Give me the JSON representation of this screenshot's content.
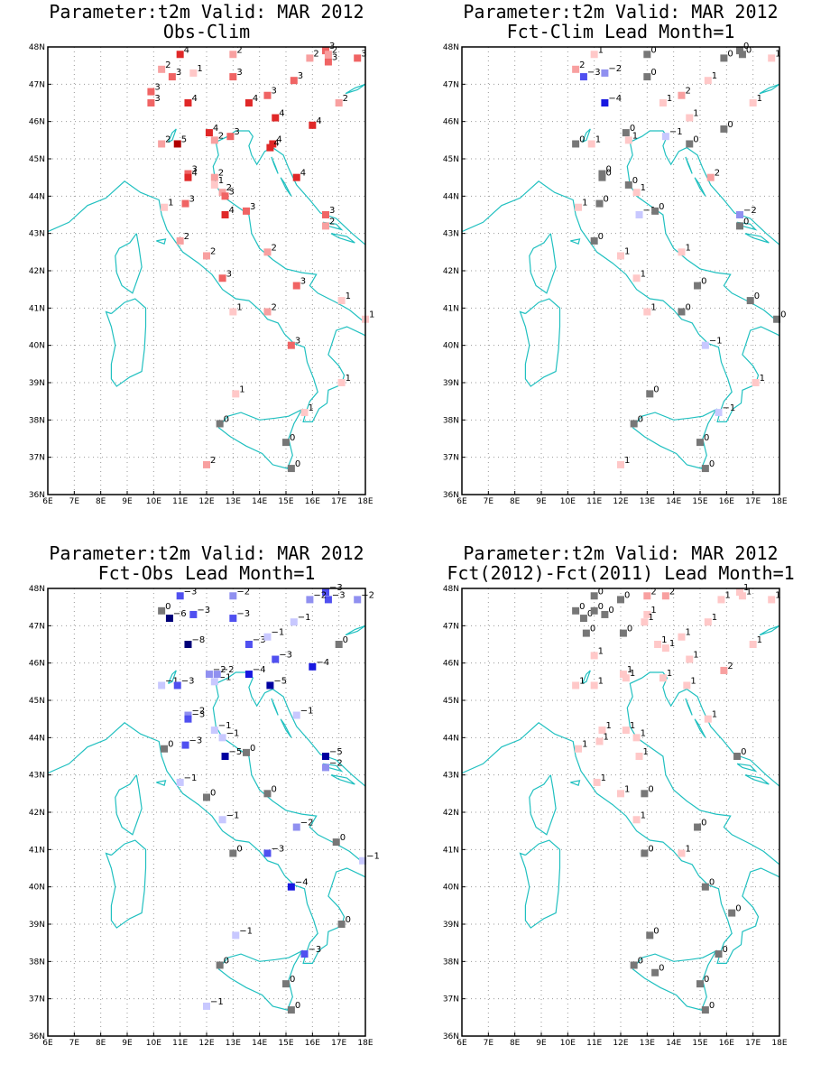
{
  "colors": {
    "coast": "#20c0c0",
    "grid": "#9a9a9a",
    "zero": "#777777",
    "pos": [
      "#ffc8c8",
      "#f8a0a0",
      "#f06464",
      "#e02828",
      "#b00000",
      "#800000"
    ],
    "neg": [
      "#c8c8ff",
      "#9090f0",
      "#5050f0",
      "#1818e0",
      "#0000a0",
      "#000078"
    ]
  },
  "chart_data": [
    {
      "type": "scatter",
      "title": "Parameter:t2m Valid: MAR 2012",
      "subtitle": "Obs-Clim",
      "xlim": [
        6,
        18
      ],
      "ylim": [
        36,
        48
      ],
      "xticks": [
        "6E",
        "7E",
        "8E",
        "9E",
        "10E",
        "11E",
        "12E",
        "13E",
        "14E",
        "15E",
        "16E",
        "17E",
        "18E"
      ],
      "yticks": [
        "36N",
        "37N",
        "38N",
        "39N",
        "40N",
        "41N",
        "42N",
        "43N",
        "44N",
        "45N",
        "46N",
        "47N",
        "48N"
      ],
      "grid": true,
      "points": [
        [
          11.0,
          47.8,
          4
        ],
        [
          13.0,
          47.8,
          2
        ],
        [
          10.3,
          47.4,
          2
        ],
        [
          11.5,
          47.3,
          1
        ],
        [
          10.7,
          47.2,
          3
        ],
        [
          9.9,
          46.8,
          3
        ],
        [
          9.9,
          46.5,
          3
        ],
        [
          13.0,
          47.2,
          3
        ],
        [
          16.5,
          47.9,
          3
        ],
        [
          16.6,
          47.8,
          2
        ],
        [
          16.6,
          47.6,
          3
        ],
        [
          17.7,
          47.7,
          3
        ],
        [
          15.9,
          47.7,
          2
        ],
        [
          15.3,
          47.1,
          3
        ],
        [
          11.3,
          46.5,
          4
        ],
        [
          13.6,
          46.5,
          4
        ],
        [
          14.3,
          46.7,
          3
        ],
        [
          14.6,
          46.1,
          4
        ],
        [
          17.0,
          46.5,
          2
        ],
        [
          16.0,
          45.9,
          4
        ],
        [
          12.1,
          45.7,
          4
        ],
        [
          12.3,
          45.5,
          2
        ],
        [
          12.9,
          45.6,
          3
        ],
        [
          10.3,
          45.4,
          2
        ],
        [
          10.9,
          45.4,
          5
        ],
        [
          14.5,
          45.4,
          4
        ],
        [
          14.4,
          45.3,
          4
        ],
        [
          11.3,
          44.6,
          3
        ],
        [
          11.3,
          44.5,
          4
        ],
        [
          12.3,
          44.5,
          2
        ],
        [
          12.3,
          44.3,
          1
        ],
        [
          12.6,
          44.1,
          2
        ],
        [
          12.7,
          44.0,
          3
        ],
        [
          15.4,
          44.5,
          4
        ],
        [
          10.4,
          43.7,
          1
        ],
        [
          11.2,
          43.8,
          3
        ],
        [
          12.7,
          43.5,
          4
        ],
        [
          13.5,
          43.6,
          3
        ],
        [
          16.5,
          43.5,
          3
        ],
        [
          16.5,
          43.2,
          2
        ],
        [
          11.0,
          42.8,
          2
        ],
        [
          12.0,
          42.4,
          2
        ],
        [
          14.3,
          42.5,
          2
        ],
        [
          12.6,
          41.8,
          3
        ],
        [
          15.4,
          41.6,
          3
        ],
        [
          13.0,
          40.9,
          1
        ],
        [
          14.3,
          40.9,
          2
        ],
        [
          17.1,
          41.2,
          1
        ],
        [
          18.0,
          40.7,
          1
        ],
        [
          15.2,
          40.0,
          3
        ],
        [
          13.1,
          38.7,
          1
        ],
        [
          15.7,
          38.2,
          1
        ],
        [
          17.1,
          39.0,
          1
        ],
        [
          12.5,
          37.9,
          0
        ],
        [
          15.0,
          37.4,
          0
        ],
        [
          15.2,
          36.7,
          0
        ],
        [
          12.0,
          36.8,
          2
        ]
      ]
    },
    {
      "type": "scatter",
      "title": "Parameter:t2m Valid: MAR 2012",
      "subtitle": "Fct-Clim Lead Month=1",
      "xlim": [
        6,
        18
      ],
      "ylim": [
        36,
        48
      ],
      "xticks": [
        "6E",
        "7E",
        "8E",
        "9E",
        "10E",
        "11E",
        "12E",
        "13E",
        "14E",
        "15E",
        "16E",
        "17E",
        "18E"
      ],
      "yticks": [
        "36N",
        "37N",
        "38N",
        "39N",
        "40N",
        "41N",
        "42N",
        "43N",
        "44N",
        "45N",
        "46N",
        "47N",
        "48N"
      ],
      "grid": true,
      "points": [
        [
          11.0,
          47.8,
          1
        ],
        [
          13.0,
          47.8,
          0
        ],
        [
          10.3,
          47.4,
          2
        ],
        [
          11.4,
          47.3,
          -2
        ],
        [
          10.6,
          47.2,
          -3
        ],
        [
          13.0,
          47.2,
          0
        ],
        [
          16.5,
          47.9,
          0
        ],
        [
          16.6,
          47.8,
          0
        ],
        [
          17.7,
          47.7,
          1
        ],
        [
          15.9,
          47.7,
          0
        ],
        [
          15.3,
          47.1,
          1
        ],
        [
          11.4,
          46.5,
          -4
        ],
        [
          13.6,
          46.5,
          1
        ],
        [
          14.3,
          46.7,
          2
        ],
        [
          14.6,
          46.1,
          1
        ],
        [
          17.0,
          46.5,
          1
        ],
        [
          15.9,
          45.8,
          0
        ],
        [
          10.3,
          45.4,
          0
        ],
        [
          10.9,
          45.4,
          1
        ],
        [
          12.2,
          45.7,
          0
        ],
        [
          12.3,
          45.5,
          1
        ],
        [
          13.7,
          45.6,
          -1
        ],
        [
          14.6,
          45.4,
          0
        ],
        [
          11.3,
          44.6,
          0
        ],
        [
          11.3,
          44.5,
          0
        ],
        [
          12.3,
          44.3,
          0
        ],
        [
          12.6,
          44.1,
          1
        ],
        [
          15.4,
          44.5,
          2
        ],
        [
          10.4,
          43.7,
          1
        ],
        [
          11.2,
          43.8,
          0
        ],
        [
          12.7,
          43.5,
          -1
        ],
        [
          13.3,
          43.6,
          0
        ],
        [
          16.5,
          43.5,
          -2
        ],
        [
          16.5,
          43.2,
          0
        ],
        [
          11.0,
          42.8,
          0
        ],
        [
          12.0,
          42.4,
          1
        ],
        [
          14.3,
          42.5,
          1
        ],
        [
          12.6,
          41.8,
          1
        ],
        [
          14.9,
          41.6,
          0
        ],
        [
          13.0,
          40.9,
          1
        ],
        [
          14.3,
          40.9,
          0
        ],
        [
          16.9,
          41.2,
          0
        ],
        [
          17.9,
          40.7,
          0
        ],
        [
          15.2,
          40.0,
          -1
        ],
        [
          13.1,
          38.7,
          0
        ],
        [
          15.7,
          38.2,
          -1
        ],
        [
          17.1,
          39.0,
          1
        ],
        [
          12.5,
          37.9,
          0
        ],
        [
          15.0,
          37.4,
          0
        ],
        [
          15.2,
          36.7,
          0
        ],
        [
          12.0,
          36.8,
          1
        ]
      ]
    },
    {
      "type": "scatter",
      "title": "Parameter:t2m Valid: MAR 2012",
      "subtitle": "Fct-Obs Lead Month=1",
      "xlim": [
        6,
        18
      ],
      "ylim": [
        36,
        48
      ],
      "xticks": [
        "6E",
        "7E",
        "8E",
        "9E",
        "10E",
        "11E",
        "12E",
        "13E",
        "14E",
        "15E",
        "16E",
        "17E",
        "18E"
      ],
      "yticks": [
        "36N",
        "37N",
        "38N",
        "39N",
        "40N",
        "41N",
        "42N",
        "43N",
        "44N",
        "45N",
        "46N",
        "47N",
        "48N"
      ],
      "grid": true,
      "points": [
        [
          11.0,
          47.8,
          -3
        ],
        [
          13.0,
          47.8,
          -2
        ],
        [
          10.3,
          47.4,
          0
        ],
        [
          10.6,
          47.2,
          -6
        ],
        [
          11.5,
          47.3,
          -3
        ],
        [
          13.0,
          47.2,
          -3
        ],
        [
          16.5,
          47.9,
          -3
        ],
        [
          16.6,
          47.7,
          -3
        ],
        [
          17.7,
          47.7,
          -2
        ],
        [
          15.9,
          47.7,
          -2
        ],
        [
          15.3,
          47.1,
          -1
        ],
        [
          11.3,
          46.5,
          -8
        ],
        [
          13.6,
          46.5,
          -3
        ],
        [
          14.3,
          46.7,
          -1
        ],
        [
          14.6,
          46.1,
          -3
        ],
        [
          17.0,
          46.5,
          0
        ],
        [
          16.0,
          45.9,
          -4
        ],
        [
          10.3,
          45.4,
          -1
        ],
        [
          10.9,
          45.4,
          -3
        ],
        [
          12.1,
          45.7,
          -2
        ],
        [
          12.3,
          45.5,
          -1
        ],
        [
          12.4,
          45.7,
          -2
        ],
        [
          13.6,
          45.7,
          -4
        ],
        [
          14.4,
          45.4,
          -5
        ],
        [
          11.3,
          44.6,
          -2
        ],
        [
          11.3,
          44.5,
          -3
        ],
        [
          12.3,
          44.2,
          -1
        ],
        [
          12.6,
          44.0,
          -1
        ],
        [
          15.4,
          44.6,
          -1
        ],
        [
          10.4,
          43.7,
          0
        ],
        [
          11.2,
          43.8,
          -3
        ],
        [
          12.7,
          43.5,
          -5
        ],
        [
          13.5,
          43.6,
          0
        ],
        [
          16.5,
          43.5,
          -5
        ],
        [
          16.5,
          43.2,
          -2
        ],
        [
          11.0,
          42.8,
          -1
        ],
        [
          12.0,
          42.4,
          0
        ],
        [
          14.3,
          42.5,
          0
        ],
        [
          12.6,
          41.8,
          -1
        ],
        [
          15.4,
          41.6,
          -2
        ],
        [
          13.0,
          40.9,
          0
        ],
        [
          14.3,
          40.9,
          -3
        ],
        [
          16.9,
          41.2,
          0
        ],
        [
          17.9,
          40.7,
          -1
        ],
        [
          15.2,
          40.0,
          -4
        ],
        [
          13.1,
          38.7,
          -1
        ],
        [
          15.7,
          38.2,
          -3
        ],
        [
          17.1,
          39.0,
          0
        ],
        [
          12.5,
          37.9,
          0
        ],
        [
          15.0,
          37.4,
          0
        ],
        [
          15.2,
          36.7,
          0
        ],
        [
          12.0,
          36.8,
          -1
        ]
      ]
    },
    {
      "type": "scatter",
      "title": "Parameter:t2m Valid: MAR 2012",
      "subtitle": "Fct(2012)-Fct(2011) Lead Month=1",
      "xlim": [
        6,
        18
      ],
      "ylim": [
        36,
        48
      ],
      "xticks": [
        "6E",
        "7E",
        "8E",
        "9E",
        "10E",
        "11E",
        "12E",
        "13E",
        "14E",
        "15E",
        "16E",
        "17E",
        "18E"
      ],
      "yticks": [
        "36N",
        "37N",
        "38N",
        "39N",
        "40N",
        "41N",
        "42N",
        "43N",
        "44N",
        "45N",
        "46N",
        "47N",
        "48N"
      ],
      "grid": true,
      "points": [
        [
          11.0,
          47.8,
          0
        ],
        [
          12.0,
          47.7,
          0
        ],
        [
          13.0,
          47.8,
          2
        ],
        [
          13.7,
          47.8,
          2
        ],
        [
          10.3,
          47.4,
          0
        ],
        [
          10.6,
          47.2,
          0
        ],
        [
          11.4,
          47.3,
          0
        ],
        [
          11.0,
          47.4,
          0
        ],
        [
          13.0,
          47.3,
          1
        ],
        [
          12.9,
          47.1,
          1
        ],
        [
          10.7,
          46.8,
          0
        ],
        [
          12.1,
          46.8,
          0
        ],
        [
          15.8,
          47.7,
          1
        ],
        [
          16.5,
          47.9,
          1
        ],
        [
          16.6,
          47.8,
          1
        ],
        [
          17.7,
          47.7,
          1
        ],
        [
          15.3,
          47.1,
          1
        ],
        [
          13.4,
          46.5,
          1
        ],
        [
          13.7,
          46.4,
          1
        ],
        [
          14.3,
          46.7,
          1
        ],
        [
          11.0,
          46.2,
          1
        ],
        [
          14.6,
          46.1,
          1
        ],
        [
          17.0,
          46.5,
          1
        ],
        [
          15.9,
          45.8,
          2
        ],
        [
          10.3,
          45.4,
          1
        ],
        [
          11.0,
          45.4,
          1
        ],
        [
          12.1,
          45.7,
          1
        ],
        [
          12.2,
          45.6,
          1
        ],
        [
          13.6,
          45.6,
          1
        ],
        [
          14.5,
          45.4,
          1
        ],
        [
          11.3,
          44.2,
          1
        ],
        [
          12.2,
          44.2,
          1
        ],
        [
          12.6,
          44.0,
          1
        ],
        [
          15.3,
          44.5,
          1
        ],
        [
          10.4,
          43.7,
          1
        ],
        [
          11.2,
          43.9,
          1
        ],
        [
          12.7,
          43.5,
          1
        ],
        [
          16.4,
          43.5,
          0
        ],
        [
          11.1,
          42.8,
          1
        ],
        [
          12.0,
          42.5,
          1
        ],
        [
          12.9,
          42.5,
          0
        ],
        [
          12.6,
          41.8,
          1
        ],
        [
          14.9,
          41.6,
          0
        ],
        [
          12.9,
          40.9,
          0
        ],
        [
          14.3,
          40.9,
          1
        ],
        [
          15.2,
          40.0,
          0
        ],
        [
          16.2,
          39.3,
          0
        ],
        [
          13.1,
          38.7,
          0
        ],
        [
          15.7,
          38.2,
          0
        ],
        [
          12.5,
          37.9,
          0
        ],
        [
          13.3,
          37.7,
          0
        ],
        [
          15.0,
          37.4,
          0
        ],
        [
          15.2,
          36.7,
          0
        ]
      ]
    }
  ]
}
